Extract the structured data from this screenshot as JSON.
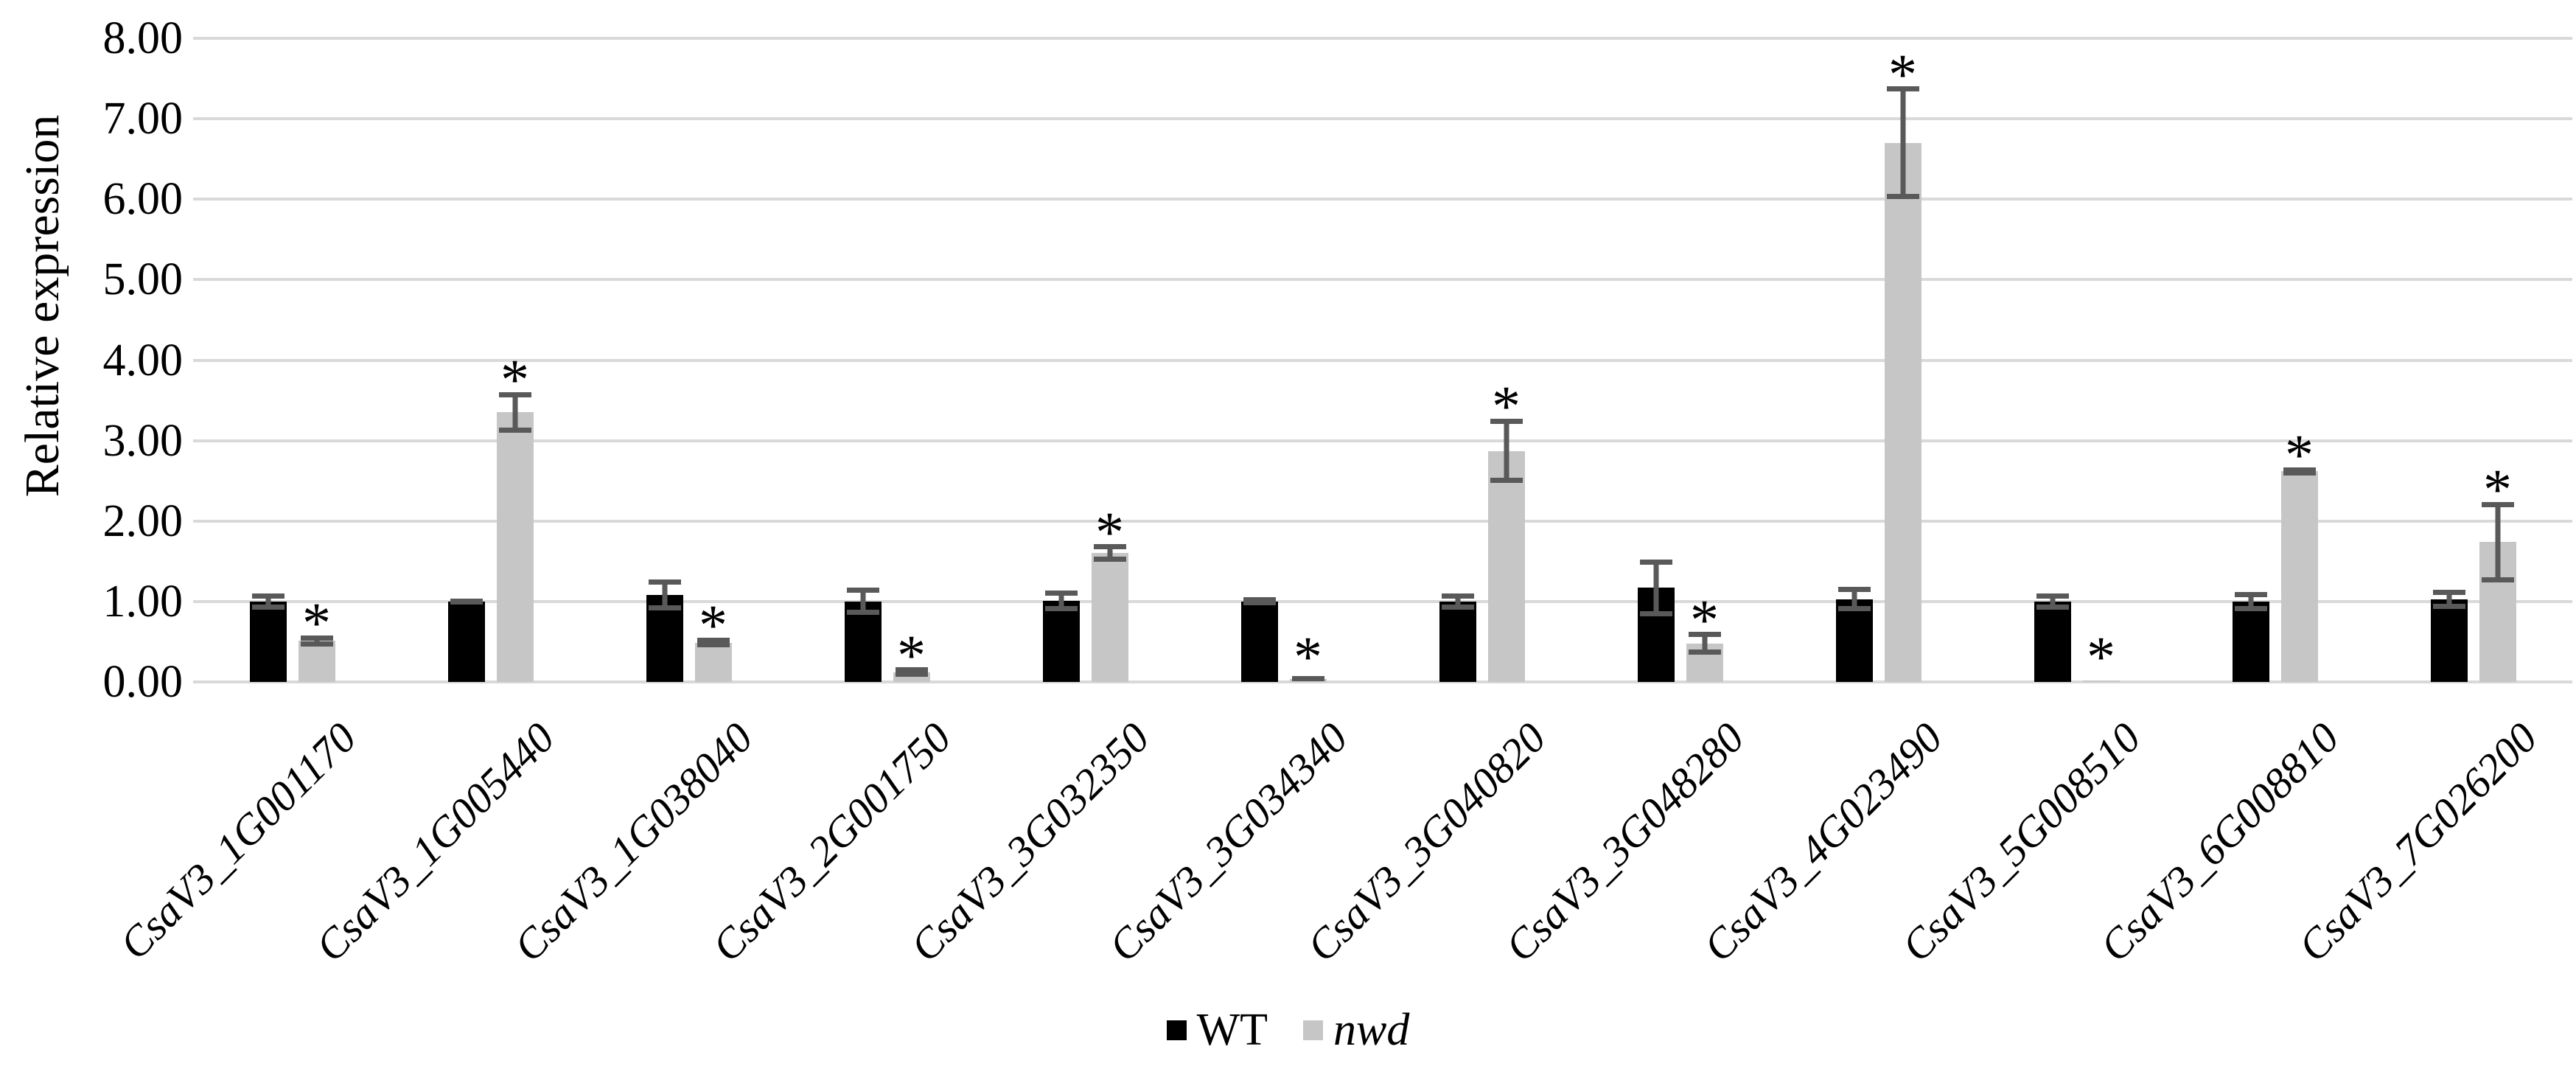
{
  "chart_data": {
    "type": "bar",
    "title": "",
    "xlabel": "",
    "ylabel": "Relative expression",
    "ylim": [
      0,
      8
    ],
    "ytick_labels": [
      "0.00",
      "1.00",
      "2.00",
      "3.00",
      "4.00",
      "5.00",
      "6.00",
      "7.00",
      "8.00"
    ],
    "grid": true,
    "gridline_color": "#d9d9d9",
    "error_bar_color": "#595959",
    "significance_marker": "*",
    "significance_marker_on_series": "nwd",
    "legend_position": "bottom-center",
    "categories": [
      "CsaV3_1G001170",
      "CsaV3_1G005440",
      "CsaV3_1G038040",
      "CsaV3_2G001750",
      "CsaV3_3G032350",
      "CsaV3_3G034340",
      "CsaV3_3G040820",
      "CsaV3_3G048280",
      "CsaV3_4G023490",
      "CsaV3_5G008510",
      "CsaV3_6G008810",
      "CsaV3_7G026200"
    ],
    "series": [
      {
        "name": "WT",
        "color": "#000000",
        "italic": false,
        "values": [
          1.0,
          1.0,
          1.08,
          1.0,
          1.01,
          1.0,
          1.0,
          1.17,
          1.03,
          1.0,
          1.0,
          1.03
        ],
        "errors": [
          0.1,
          0.04,
          0.19,
          0.17,
          0.13,
          0.05,
          0.1,
          0.35,
          0.15,
          0.1,
          0.12,
          0.12
        ],
        "significance": [
          false,
          false,
          false,
          false,
          false,
          false,
          false,
          false,
          false,
          false,
          false,
          false
        ]
      },
      {
        "name": "nwd",
        "color": "#c6c6c6",
        "italic": true,
        "values": [
          0.51,
          3.35,
          0.49,
          0.12,
          1.6,
          0.04,
          2.87,
          0.48,
          6.7,
          0.02,
          2.62,
          1.74
        ],
        "errors": [
          0.07,
          0.25,
          0.06,
          0.06,
          0.11,
          0.03,
          0.4,
          0.14,
          0.7,
          0.0,
          0.05,
          0.5
        ],
        "significance": [
          true,
          true,
          true,
          true,
          true,
          true,
          true,
          true,
          true,
          true,
          true,
          true
        ]
      }
    ]
  }
}
